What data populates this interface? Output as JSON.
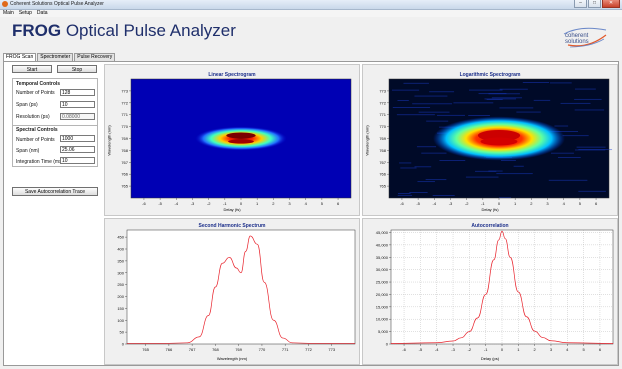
{
  "window": {
    "title": "Coherent Solutions Optical Pulse Analyzer"
  },
  "menu": [
    "Main",
    "Setup",
    "Data"
  ],
  "app": {
    "title_bold": "FROG",
    "title_rest": " Optical Pulse Analyzer",
    "logo_line1": "coherent",
    "logo_line2": "solutions"
  },
  "tabs": [
    {
      "label": "FROG Scan"
    },
    {
      "label": "Spectrometer"
    },
    {
      "label": "Pulse Recovery"
    }
  ],
  "controls": {
    "start_label": "Start",
    "stop_label": "Stop",
    "temporal": {
      "title": "Temporal Controls",
      "points_label": "Number of Points",
      "points_value": "128",
      "span_label": "Span (ps)",
      "span_value": "10",
      "res_label": "Resolution (ps)",
      "res_value": "0.08000"
    },
    "spectral": {
      "title": "Spectral Controls",
      "points_label": "Number of Points",
      "points_value": "1000",
      "span_label": "Span (nm)",
      "span_value": "25.06",
      "int_label": "Integration Time (ms)",
      "int_value": "10"
    },
    "save_label": "Save Autocorrelation Trace"
  },
  "charts": {
    "linear": {
      "title": "Linear Spectrogram",
      "xlabel": "Delay (fs)",
      "ylabel": "Wavelength (nm)"
    },
    "log": {
      "title": "Logarithmic Spectrogram",
      "xlabel": "Delay (fs)",
      "ylabel": "Wavelength (nm)"
    },
    "shg": {
      "title": "Second Harmonic Spectrum",
      "xlabel": "Wavelength (nm)"
    },
    "auto": {
      "title": "Autocorrelation",
      "xlabel": "Delay (ps)"
    }
  },
  "chart_data": [
    {
      "type": "heatmap",
      "title": "Linear Spectrogram",
      "xlabel": "Delay (fs)",
      "ylabel": "Wavelength (nm)",
      "xticks": [
        "-6",
        "-5",
        "-4",
        "-3",
        "-2",
        "-1",
        "0",
        "1",
        "2",
        "3",
        "4",
        "5",
        "6"
      ],
      "yticks": [
        "773",
        "772",
        "771",
        "770",
        "769",
        "768",
        "767",
        "766",
        "765"
      ],
      "xlim": [
        -6.8,
        6.8
      ],
      "ylim": [
        764,
        774
      ],
      "peak_x": 0,
      "peak_y": 769,
      "scale": "linear"
    },
    {
      "type": "heatmap",
      "title": "Logarithmic Spectrogram",
      "xlabel": "Delay (fs)",
      "ylabel": "Wavelength (nm)",
      "xticks": [
        "-6",
        "-5",
        "-4",
        "-3",
        "-2",
        "-1",
        "0",
        "1",
        "2",
        "3",
        "4",
        "5",
        "6"
      ],
      "yticks": [
        "773",
        "772",
        "771",
        "770",
        "769",
        "768",
        "767",
        "766",
        "765"
      ],
      "xlim": [
        -6.8,
        6.8
      ],
      "ylim": [
        764,
        774
      ],
      "peak_x": 0,
      "peak_y": 769,
      "scale": "log"
    },
    {
      "type": "line",
      "title": "Second Harmonic Spectrum",
      "xlabel": "Wavelength (nm)",
      "xticks": [
        "765",
        "766",
        "767",
        "768",
        "769",
        "770",
        "771",
        "772",
        "773"
      ],
      "yticks": [
        "0",
        "50",
        "100",
        "150",
        "200",
        "250",
        "300",
        "350",
        "400",
        "450"
      ],
      "xlim": [
        764.2,
        774
      ],
      "ylim": [
        0,
        480
      ],
      "grid": false,
      "x": [
        764.2,
        766,
        766.8,
        767.3,
        767.7,
        768.0,
        768.3,
        768.6,
        768.9,
        769.1,
        769.3,
        769.5,
        769.8,
        770.1,
        770.5,
        770.9,
        771.3,
        772,
        774
      ],
      "y": [
        3,
        3,
        5,
        30,
        120,
        240,
        340,
        365,
        320,
        300,
        390,
        455,
        420,
        260,
        100,
        25,
        5,
        3,
        3
      ]
    },
    {
      "type": "line",
      "title": "Autocorrelation",
      "xlabel": "Delay (ps)",
      "xticks": [
        "-6",
        "-5",
        "-4",
        "-3",
        "-2",
        "-1",
        "0",
        "1",
        "2",
        "3",
        "4",
        "5",
        "6"
      ],
      "yticks": [
        "0",
        "5,000",
        "10,000",
        "15,000",
        "20,000",
        "25,000",
        "30,000",
        "35,000",
        "40,000",
        "45,000"
      ],
      "xlim": [
        -6.8,
        6.8
      ],
      "ylim": [
        0,
        46000
      ],
      "grid": true,
      "x": [
        -6.8,
        -4,
        -3,
        -2.5,
        -2,
        -1.5,
        -1,
        -0.5,
        -0.2,
        0,
        0.2,
        0.5,
        1,
        1.5,
        2,
        2.5,
        3,
        4,
        6.8
      ],
      "y": [
        200,
        500,
        1200,
        2500,
        5000,
        10500,
        20000,
        34000,
        42000,
        45500,
        42500,
        35000,
        21000,
        11000,
        5200,
        2600,
        1300,
        500,
        200
      ]
    }
  ],
  "colors": {
    "title": "#1f2f6b",
    "chart_title": "#1c2f8a",
    "trace": "#e8232c"
  }
}
